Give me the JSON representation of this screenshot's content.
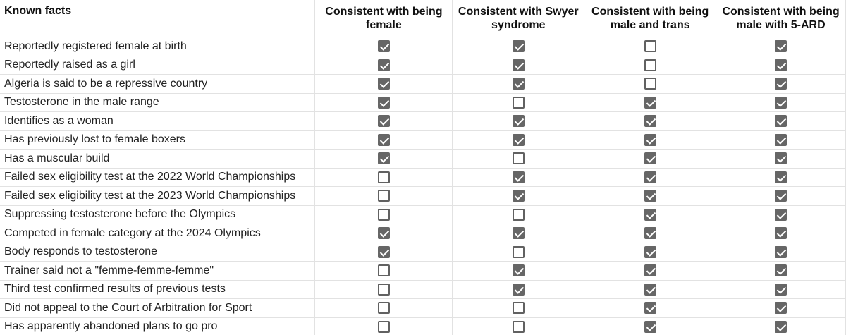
{
  "sheet": {
    "columns": [
      "Known facts",
      "Consistent with being female",
      "Consistent with Swyer syndrome",
      "Consistent with being male and trans",
      "Consistent with being male with 5-ARD"
    ],
    "rows": [
      {
        "fact": "Reportedly registered female at birth",
        "checks": [
          true,
          true,
          false,
          true
        ]
      },
      {
        "fact": "Reportedly raised as a girl",
        "checks": [
          true,
          true,
          false,
          true
        ]
      },
      {
        "fact": "Algeria is said to be a repressive country",
        "checks": [
          true,
          true,
          false,
          true
        ]
      },
      {
        "fact": "Testosterone in the male range",
        "checks": [
          true,
          false,
          true,
          true
        ]
      },
      {
        "fact": "Identifies as a woman",
        "checks": [
          true,
          true,
          true,
          true
        ]
      },
      {
        "fact": "Has previously lost to female boxers",
        "checks": [
          true,
          true,
          true,
          true
        ]
      },
      {
        "fact": "Has a muscular build",
        "checks": [
          true,
          false,
          true,
          true
        ]
      },
      {
        "fact": "Failed sex eligibility test at the 2022 World Championships",
        "checks": [
          false,
          true,
          true,
          true
        ]
      },
      {
        "fact": "Failed sex eligibility test at the 2023 World Championships",
        "checks": [
          false,
          true,
          true,
          true
        ]
      },
      {
        "fact": "Suppressing testosterone before the Olympics",
        "checks": [
          false,
          false,
          true,
          true
        ]
      },
      {
        "fact": "Competed in female category at the 2024 Olympics",
        "checks": [
          true,
          true,
          true,
          true
        ]
      },
      {
        "fact": "Body responds to testosterone",
        "checks": [
          true,
          false,
          true,
          true
        ]
      },
      {
        "fact": "Trainer said not a \"femme-femme-femme\"",
        "checks": [
          false,
          true,
          true,
          true
        ]
      },
      {
        "fact": "Third test confirmed results of previous tests",
        "checks": [
          false,
          true,
          true,
          true
        ]
      },
      {
        "fact": "Did not appeal to the Court of Arbitration for Sport",
        "checks": [
          false,
          false,
          true,
          true
        ]
      },
      {
        "fact": "Has apparently abandoned plans to go pro",
        "checks": [
          false,
          false,
          true,
          true
        ]
      }
    ]
  },
  "colors": {
    "checked_fill": "#666666",
    "unchecked_border": "#616161",
    "gridline": "#e2e2e2"
  },
  "icons": {
    "checked": "checkbox-checked-icon",
    "unchecked": "checkbox-unchecked-icon"
  }
}
